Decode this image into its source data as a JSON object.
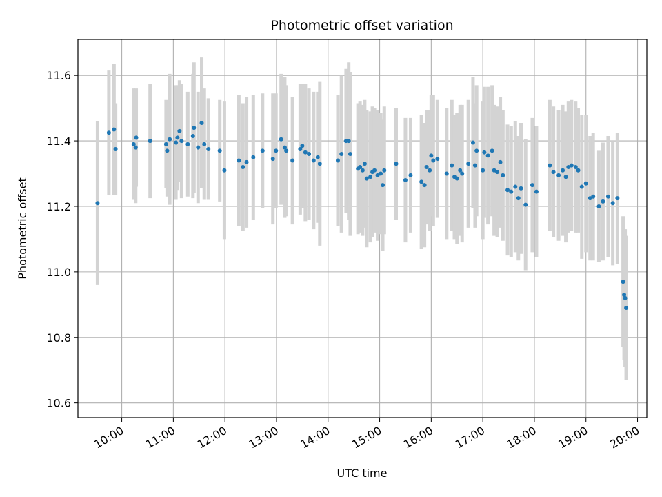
{
  "chart_data": {
    "type": "scatter",
    "title": "Photometric offset variation",
    "xlabel": "UTC time",
    "ylabel": "Photometric offset",
    "x_unit": "hours UTC",
    "xlim": [
      9.15,
      20.18
    ],
    "ylim": [
      10.555,
      11.71
    ],
    "xticks": [
      10,
      11,
      12,
      13,
      14,
      15,
      16,
      17,
      18,
      19,
      20
    ],
    "xtick_labels": [
      "10:00",
      "11:00",
      "12:00",
      "13:00",
      "14:00",
      "15:00",
      "16:00",
      "17:00",
      "18:00",
      "19:00",
      "20:00"
    ],
    "yticks": [
      10.6,
      10.8,
      11.0,
      11.2,
      11.4,
      11.6
    ],
    "ytick_labels": [
      "10.6",
      "10.8",
      "11.0",
      "11.2",
      "11.4",
      "11.6"
    ],
    "grid": true,
    "point_color": "#1f77b4",
    "errorbar_color": "#d3d3d3",
    "points": [
      [
        9.53,
        11.21,
        0.25
      ],
      [
        9.75,
        11.425,
        0.19
      ],
      [
        9.85,
        11.435,
        0.2
      ],
      [
        9.88,
        11.375,
        0.14
      ],
      [
        10.23,
        11.39,
        0.17
      ],
      [
        10.27,
        11.38,
        0.17
      ],
      [
        10.28,
        11.41,
        0.15
      ],
      [
        10.55,
        11.4,
        0.175
      ],
      [
        10.86,
        11.39,
        0.135
      ],
      [
        10.88,
        11.37,
        0.14
      ],
      [
        10.93,
        11.405,
        0.2
      ],
      [
        11.05,
        11.395,
        0.175
      ],
      [
        11.08,
        11.41,
        0.16
      ],
      [
        11.12,
        11.43,
        0.155
      ],
      [
        11.16,
        11.4,
        0.175
      ],
      [
        11.28,
        11.39,
        0.16
      ],
      [
        11.38,
        11.415,
        0.19
      ],
      [
        11.4,
        11.44,
        0.2
      ],
      [
        11.48,
        11.38,
        0.17
      ],
      [
        11.55,
        11.455,
        0.2
      ],
      [
        11.6,
        11.39,
        0.17
      ],
      [
        11.68,
        11.375,
        0.155
      ],
      [
        11.9,
        11.37,
        0.155
      ],
      [
        11.99,
        11.31,
        0.21
      ],
      [
        12.27,
        11.34,
        0.2
      ],
      [
        12.35,
        11.32,
        0.195
      ],
      [
        12.42,
        11.335,
        0.2
      ],
      [
        12.55,
        11.35,
        0.19
      ],
      [
        12.73,
        11.37,
        0.175
      ],
      [
        12.93,
        11.345,
        0.2
      ],
      [
        12.99,
        11.37,
        0.175
      ],
      [
        13.09,
        11.405,
        0.2
      ],
      [
        13.16,
        11.38,
        0.215
      ],
      [
        13.19,
        11.37,
        0.2
      ],
      [
        13.31,
        11.34,
        0.195
      ],
      [
        13.46,
        11.375,
        0.2
      ],
      [
        13.5,
        11.385,
        0.19
      ],
      [
        13.56,
        11.365,
        0.21
      ],
      [
        13.63,
        11.36,
        0.2
      ],
      [
        13.72,
        11.34,
        0.21
      ],
      [
        13.8,
        11.35,
        0.2
      ],
      [
        13.84,
        11.33,
        0.25
      ],
      [
        14.19,
        11.34,
        0.2
      ],
      [
        14.26,
        11.36,
        0.24
      ],
      [
        14.35,
        11.4,
        0.22
      ],
      [
        14.4,
        11.4,
        0.24
      ],
      [
        14.43,
        11.36,
        0.25
      ],
      [
        14.58,
        11.315,
        0.2
      ],
      [
        14.62,
        11.32,
        0.2
      ],
      [
        14.67,
        11.31,
        0.2
      ],
      [
        14.71,
        11.33,
        0.195
      ],
      [
        14.75,
        11.285,
        0.21
      ],
      [
        14.82,
        11.29,
        0.2
      ],
      [
        14.86,
        11.305,
        0.2
      ],
      [
        14.9,
        11.31,
        0.19
      ],
      [
        14.96,
        11.295,
        0.2
      ],
      [
        15.02,
        11.3,
        0.185
      ],
      [
        15.06,
        11.265,
        0.2
      ],
      [
        15.09,
        11.31,
        0.195
      ],
      [
        15.32,
        11.33,
        0.17
      ],
      [
        15.5,
        11.28,
        0.19
      ],
      [
        15.6,
        11.295,
        0.175
      ],
      [
        15.81,
        11.275,
        0.205
      ],
      [
        15.87,
        11.265,
        0.19
      ],
      [
        15.91,
        11.32,
        0.175
      ],
      [
        15.97,
        11.31,
        0.185
      ],
      [
        16.0,
        11.355,
        0.185
      ],
      [
        16.04,
        11.34,
        0.2
      ],
      [
        16.12,
        11.345,
        0.18
      ],
      [
        16.3,
        11.3,
        0.2
      ],
      [
        16.4,
        11.325,
        0.2
      ],
      [
        16.45,
        11.29,
        0.19
      ],
      [
        16.5,
        11.285,
        0.2
      ],
      [
        16.56,
        11.31,
        0.2
      ],
      [
        16.6,
        11.3,
        0.21
      ],
      [
        16.72,
        11.33,
        0.195
      ],
      [
        16.81,
        11.395,
        0.2
      ],
      [
        16.85,
        11.325,
        0.19
      ],
      [
        16.88,
        11.37,
        0.2
      ],
      [
        17.0,
        11.31,
        0.21
      ],
      [
        17.03,
        11.365,
        0.2
      ],
      [
        17.1,
        11.355,
        0.21
      ],
      [
        17.18,
        11.37,
        0.2
      ],
      [
        17.22,
        11.31,
        0.2
      ],
      [
        17.28,
        11.305,
        0.2
      ],
      [
        17.34,
        11.335,
        0.2
      ],
      [
        17.39,
        11.295,
        0.2
      ],
      [
        17.48,
        11.25,
        0.2
      ],
      [
        17.55,
        11.245,
        0.2
      ],
      [
        17.63,
        11.26,
        0.2
      ],
      [
        17.69,
        11.225,
        0.19
      ],
      [
        17.74,
        11.255,
        0.2
      ],
      [
        17.83,
        11.205,
        0.2
      ],
      [
        17.96,
        11.265,
        0.205
      ],
      [
        18.04,
        11.245,
        0.2
      ],
      [
        18.3,
        11.325,
        0.2
      ],
      [
        18.37,
        11.305,
        0.2
      ],
      [
        18.47,
        11.295,
        0.2
      ],
      [
        18.55,
        11.31,
        0.2
      ],
      [
        18.61,
        11.29,
        0.2
      ],
      [
        18.66,
        11.32,
        0.2
      ],
      [
        18.72,
        11.325,
        0.2
      ],
      [
        18.8,
        11.32,
        0.2
      ],
      [
        18.85,
        11.31,
        0.19
      ],
      [
        18.92,
        11.26,
        0.22
      ],
      [
        19.0,
        11.27,
        0.21
      ],
      [
        19.08,
        11.225,
        0.19
      ],
      [
        19.14,
        11.23,
        0.195
      ],
      [
        19.25,
        11.2,
        0.17
      ],
      [
        19.33,
        11.215,
        0.18
      ],
      [
        19.43,
        11.23,
        0.185
      ],
      [
        19.52,
        11.21,
        0.19
      ],
      [
        19.61,
        11.225,
        0.2
      ],
      [
        19.72,
        10.97,
        0.2
      ],
      [
        19.74,
        10.93,
        0.2
      ],
      [
        19.76,
        10.92,
        0.21
      ],
      [
        19.78,
        10.89,
        0.22
      ]
    ]
  }
}
